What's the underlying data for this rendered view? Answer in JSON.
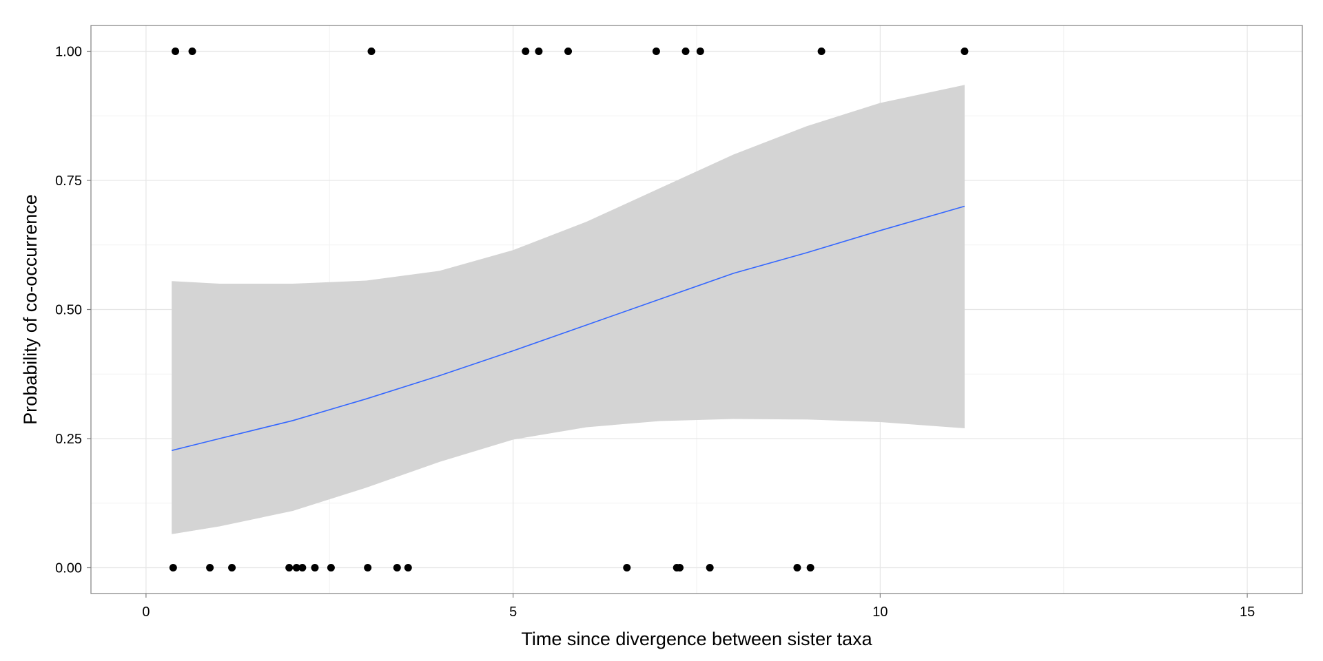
{
  "chart_data": {
    "type": "scatter",
    "title": "",
    "xlabel": "Time since divergence between sister taxa",
    "ylabel": "Probability of co-occurrence",
    "xlim": [
      -0.75,
      15.75
    ],
    "ylim": [
      -0.05,
      1.05
    ],
    "x_ticks": [
      0,
      5,
      10,
      15
    ],
    "x_tick_labels": [
      "0",
      "5",
      "10",
      "15"
    ],
    "y_ticks": [
      0,
      0.25,
      0.5,
      0.75,
      1
    ],
    "y_tick_labels": [
      "0.00",
      "0.25",
      "0.50",
      "0.75",
      "1.00"
    ],
    "grid": true,
    "legend": "none",
    "colors": {
      "points": "#000000",
      "fit_line": "#3366ff",
      "ribbon": "#d4d4d4",
      "grid_major": "#e6e6e6",
      "grid_minor": "#f2f2f2",
      "frame": "#7f7f7f"
    },
    "points": [
      {
        "x": 0.4,
        "y": 1
      },
      {
        "x": 0.63,
        "y": 1
      },
      {
        "x": 3.07,
        "y": 1
      },
      {
        "x": 5.17,
        "y": 1
      },
      {
        "x": 5.35,
        "y": 1
      },
      {
        "x": 5.75,
        "y": 1
      },
      {
        "x": 6.95,
        "y": 1
      },
      {
        "x": 7.35,
        "y": 1
      },
      {
        "x": 7.55,
        "y": 1
      },
      {
        "x": 9.2,
        "y": 1
      },
      {
        "x": 11.15,
        "y": 1
      },
      {
        "x": 0.37,
        "y": 0
      },
      {
        "x": 0.87,
        "y": 0
      },
      {
        "x": 1.17,
        "y": 0
      },
      {
        "x": 1.95,
        "y": 0
      },
      {
        "x": 2.05,
        "y": 0
      },
      {
        "x": 2.13,
        "y": 0
      },
      {
        "x": 2.3,
        "y": 0
      },
      {
        "x": 2.52,
        "y": 0
      },
      {
        "x": 3.02,
        "y": 0
      },
      {
        "x": 3.42,
        "y": 0
      },
      {
        "x": 3.57,
        "y": 0
      },
      {
        "x": 6.55,
        "y": 0
      },
      {
        "x": 7.23,
        "y": 0
      },
      {
        "x": 7.27,
        "y": 0
      },
      {
        "x": 7.68,
        "y": 0
      },
      {
        "x": 8.87,
        "y": 0
      },
      {
        "x": 9.05,
        "y": 0
      }
    ],
    "fit": {
      "x": [
        0.35,
        1.0,
        2.0,
        3.0,
        4.0,
        5.0,
        6.0,
        7.0,
        8.0,
        9.0,
        10.0,
        11.15
      ],
      "y": [
        0.227,
        0.25,
        0.285,
        0.327,
        0.372,
        0.42,
        0.47,
        0.52,
        0.57,
        0.61,
        0.653,
        0.7
      ],
      "lower": [
        0.065,
        0.08,
        0.11,
        0.155,
        0.205,
        0.248,
        0.272,
        0.284,
        0.288,
        0.287,
        0.282,
        0.27
      ],
      "upper": [
        0.555,
        0.55,
        0.55,
        0.556,
        0.575,
        0.615,
        0.67,
        0.735,
        0.8,
        0.855,
        0.9,
        0.935
      ]
    }
  }
}
